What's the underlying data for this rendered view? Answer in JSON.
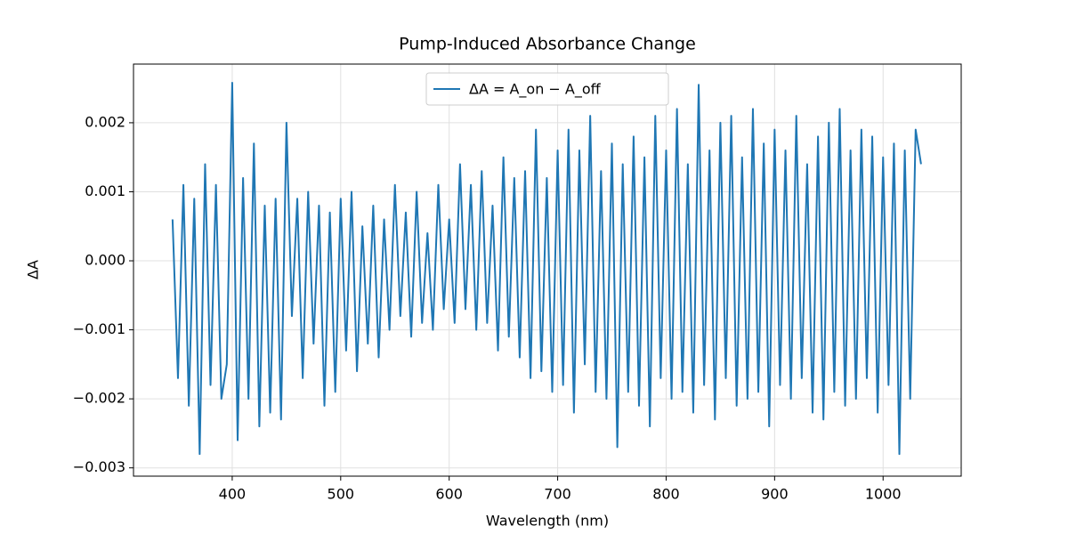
{
  "chart_data": {
    "type": "line",
    "title": "Pump-Induced Absorbance Change",
    "x_label": "Wavelength (nm)",
    "y_label": "ΔA",
    "x": [
      345,
      350,
      355,
      360,
      365,
      370,
      375,
      380,
      385,
      390,
      395,
      400,
      405,
      410,
      415,
      420,
      425,
      430,
      435,
      440,
      445,
      450,
      455,
      460,
      465,
      470,
      475,
      480,
      485,
      490,
      495,
      500,
      505,
      510,
      515,
      520,
      525,
      530,
      535,
      540,
      545,
      550,
      555,
      560,
      565,
      570,
      575,
      580,
      585,
      590,
      595,
      600,
      605,
      610,
      615,
      620,
      625,
      630,
      635,
      640,
      645,
      650,
      655,
      660,
      665,
      670,
      675,
      680,
      685,
      690,
      695,
      700,
      705,
      710,
      715,
      720,
      725,
      730,
      735,
      740,
      745,
      750,
      755,
      760,
      765,
      770,
      775,
      780,
      785,
      790,
      795,
      800,
      805,
      810,
      815,
      820,
      825,
      830,
      835,
      840,
      845,
      850,
      855,
      860,
      865,
      870,
      875,
      880,
      885,
      890,
      895,
      900,
      905,
      910,
      915,
      920,
      925,
      930,
      935,
      940,
      945,
      950,
      955,
      960,
      965,
      970,
      975,
      980,
      985,
      990,
      995,
      1000,
      1005,
      1010,
      1015,
      1020,
      1025,
      1030,
      1035
    ],
    "series": [
      {
        "name": "ΔA = A_on − A_off",
        "color": "#1f77b4",
        "values": [
          0.0006,
          -0.0017,
          0.0011,
          -0.0021,
          0.0009,
          -0.0028,
          0.0014,
          -0.0018,
          0.0011,
          -0.002,
          -0.0015,
          0.00258,
          -0.0026,
          0.0012,
          -0.002,
          0.0017,
          -0.0024,
          0.0008,
          -0.0022,
          0.0009,
          -0.0023,
          0.002,
          -0.0008,
          0.0009,
          -0.0017,
          0.001,
          -0.0012,
          0.0008,
          -0.0021,
          0.0007,
          -0.0019,
          0.0009,
          -0.0013,
          0.001,
          -0.0016,
          0.0005,
          -0.0012,
          0.0008,
          -0.0014,
          0.0006,
          -0.001,
          0.0011,
          -0.0008,
          0.0007,
          -0.0011,
          0.001,
          -0.0009,
          0.0004,
          -0.001,
          0.0011,
          -0.0007,
          0.0006,
          -0.0009,
          0.0014,
          -0.0007,
          0.0011,
          -0.001,
          0.0013,
          -0.0009,
          0.0008,
          -0.0013,
          0.0015,
          -0.0011,
          0.0012,
          -0.0014,
          0.0013,
          -0.0017,
          0.0019,
          -0.0016,
          0.0012,
          -0.0019,
          0.0016,
          -0.0018,
          0.0019,
          -0.0022,
          0.0016,
          -0.0015,
          0.0021,
          -0.0019,
          0.0013,
          -0.002,
          0.0017,
          -0.0027,
          0.0014,
          -0.0019,
          0.0018,
          -0.0021,
          0.0015,
          -0.0024,
          0.0021,
          -0.0017,
          0.0016,
          -0.002,
          0.0022,
          -0.0019,
          0.0014,
          -0.0022,
          0.00255,
          -0.0018,
          0.0016,
          -0.0023,
          0.002,
          -0.0017,
          0.0021,
          -0.0021,
          0.0015,
          -0.002,
          0.0022,
          -0.0019,
          0.0017,
          -0.0024,
          0.0019,
          -0.0018,
          0.0016,
          -0.002,
          0.0021,
          -0.0017,
          0.0014,
          -0.0022,
          0.0018,
          -0.0023,
          0.002,
          -0.0019,
          0.0022,
          -0.0021,
          0.0016,
          -0.002,
          0.0019,
          -0.0017,
          0.0018,
          -0.0022,
          0.0015,
          -0.0018,
          0.0017,
          -0.0028,
          0.0016,
          -0.002,
          0.0019,
          0.0014
        ]
      }
    ],
    "xlim": [
      309,
      1072
    ],
    "xticks": [
      400,
      500,
      600,
      700,
      800,
      900,
      1000
    ],
    "ylim": [
      -0.00312,
      0.00285
    ],
    "yticks": [
      {
        "value": -0.003,
        "label": "−0.003"
      },
      {
        "value": -0.002,
        "label": "−0.002"
      },
      {
        "value": -0.001,
        "label": "−0.001"
      },
      {
        "value": 0,
        "label": "0.000"
      },
      {
        "value": 0.001,
        "label": "0.001"
      },
      {
        "value": 0.002,
        "label": "0.002"
      }
    ],
    "grid": true,
    "legend": "upper center"
  }
}
